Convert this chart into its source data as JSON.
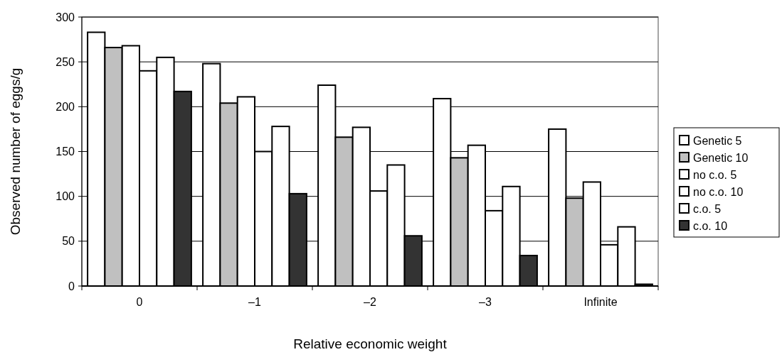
{
  "chart_data": {
    "type": "bar",
    "xlabel": "Relative economic weight",
    "ylabel": "Observed number of eggs/g",
    "categories": [
      "0",
      "–1",
      "–2",
      "–3",
      "Infinite"
    ],
    "series": [
      {
        "name": "Genetic 5",
        "color": "#ffffff",
        "values": [
          283,
          248,
          224,
          209,
          175
        ]
      },
      {
        "name": "Genetic 10",
        "color": "#c0c0c0",
        "values": [
          266,
          204,
          166,
          143,
          98
        ]
      },
      {
        "name": "no c.o. 5",
        "color": "#ffffff",
        "values": [
          268,
          211,
          177,
          157,
          116
        ]
      },
      {
        "name": "no c.o. 10",
        "color": "#ffffff",
        "values": [
          240,
          150,
          106,
          84,
          46
        ]
      },
      {
        "name": "c.o. 5",
        "color": "#ffffff",
        "values": [
          255,
          178,
          135,
          111,
          66
        ]
      },
      {
        "name": "c.o. 10",
        "color": "#333333",
        "values": [
          217,
          103,
          56,
          34,
          2
        ]
      }
    ],
    "ylim": [
      0,
      300
    ],
    "yticks": [
      0,
      50,
      100,
      150,
      200,
      250,
      300
    ],
    "grid": "y",
    "legend": "right"
  }
}
